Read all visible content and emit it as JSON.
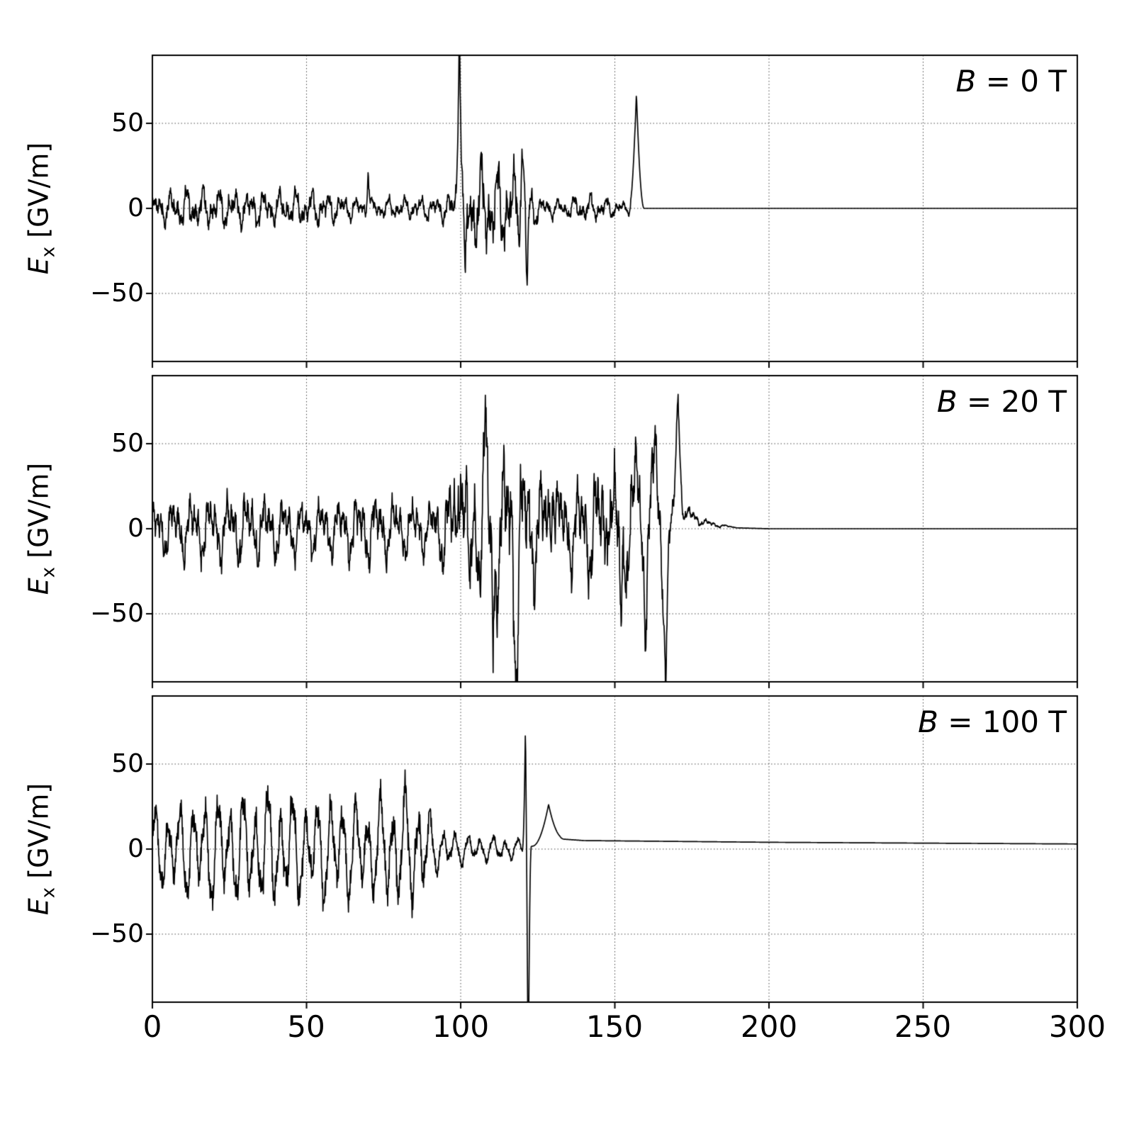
{
  "chart_data": {
    "type": "line",
    "title": "",
    "xlabel": "",
    "ylabel_parts": {
      "sym": "E",
      "sub": "x",
      "unit": " [GV/m]"
    },
    "xlim": [
      0,
      300
    ],
    "ylim": [
      -90,
      90
    ],
    "xticks": [
      0,
      50,
      100,
      150,
      200,
      250,
      300
    ],
    "xtick_labels": [
      "0",
      "50",
      "100",
      "150",
      "200",
      "250",
      "300"
    ],
    "yticks": [
      50,
      0,
      -50
    ],
    "ytick_labels": [
      "50",
      "0",
      "−50"
    ],
    "grid": "dotted",
    "grid_color": "#444444",
    "line_color": "#000000",
    "legend": "none",
    "panels": [
      {
        "label_var": "B",
        "label_rest": " = 0 T",
        "description": "Noisy wakefield ±20 GV/m up to x≈95, large clipped spike at x≈100, strong oscillations to x≈122, small noise to x≈155, solitary peak ≈68 at x≈157, flat 0 afterwards",
        "signal": {
          "osc": [
            [
              1.25,
              0.45,
              0.0
            ],
            [
              2.3,
              0.35,
              1.3
            ],
            [
              5.3,
              0.2,
              2.1
            ],
            [
              11.7,
              0.12,
              0.7
            ]
          ],
          "envelope": [
            [
              0,
              10
            ],
            [
              12,
              15
            ],
            [
              20,
              14
            ],
            [
              30,
              13
            ],
            [
              40,
              12
            ],
            [
              52,
              13
            ],
            [
              60,
              10
            ],
            [
              68,
              7
            ],
            [
              75,
              7
            ],
            [
              85,
              8
            ],
            [
              92,
              8
            ],
            [
              96,
              11
            ],
            [
              99,
              16
            ],
            [
              103,
              30
            ],
            [
              107,
              34
            ],
            [
              112,
              30
            ],
            [
              118,
              30
            ],
            [
              122,
              18
            ],
            [
              126,
              8
            ],
            [
              133,
              6
            ],
            [
              140,
              10
            ],
            [
              146,
              8
            ],
            [
              150,
              6
            ],
            [
              155,
              4
            ],
            [
              158,
              0
            ],
            [
              300,
              0
            ]
          ],
          "baseline": [
            [
              0,
              0
            ],
            [
              300,
              0
            ]
          ],
          "spikes": [
            {
              "x": 70,
              "y": 25,
              "w": 1.0
            },
            {
              "x": 99.6,
              "y": 120,
              "w": 1.5
            },
            {
              "x": 101.5,
              "y": -55,
              "w": 1.2
            },
            {
              "x": 120,
              "y": 38,
              "w": 1.5
            },
            {
              "x": 121.5,
              "y": -48,
              "w": 1.2
            },
            {
              "x": 157,
              "y": 68,
              "w": 2.5
            }
          ]
        }
      },
      {
        "label_var": "B",
        "label_rest": " = 20 T",
        "description": "Noisy wakefield ±25 GV/m up to x≈95, growing chaotic oscillations ±70 between x≈95–168, extreme dip ≈−85 at x≈166 and peak ≈80 at x≈170, decays to 0 by x≈190",
        "signal": {
          "osc": [
            [
              1.05,
              0.5,
              0.5
            ],
            [
              2.1,
              0.3,
              1.9
            ],
            [
              4.7,
              0.25,
              0.3
            ],
            [
              9.3,
              0.12,
              2.2
            ]
          ],
          "envelope": [
            [
              0,
              18
            ],
            [
              10,
              22
            ],
            [
              20,
              22
            ],
            [
              30,
              25
            ],
            [
              40,
              22
            ],
            [
              50,
              18
            ],
            [
              60,
              20
            ],
            [
              70,
              25
            ],
            [
              80,
              20
            ],
            [
              90,
              18
            ],
            [
              95,
              30
            ],
            [
              100,
              45
            ],
            [
              105,
              40
            ],
            [
              110,
              50
            ],
            [
              115,
              55
            ],
            [
              120,
              50
            ],
            [
              125,
              40
            ],
            [
              130,
              35
            ],
            [
              135,
              30
            ],
            [
              140,
              35
            ],
            [
              145,
              45
            ],
            [
              150,
              45
            ],
            [
              155,
              40
            ],
            [
              158,
              35
            ],
            [
              162,
              40
            ],
            [
              165,
              28
            ],
            [
              168,
              18
            ],
            [
              172,
              8
            ],
            [
              178,
              3
            ],
            [
              185,
              1
            ],
            [
              190,
              0
            ],
            [
              300,
              0
            ]
          ],
          "baseline": [
            [
              0,
              0
            ],
            [
              170,
              0
            ],
            [
              174,
              8
            ],
            [
              180,
              3
            ],
            [
              190,
              0.5
            ],
            [
              200,
              0
            ],
            [
              300,
              0
            ]
          ],
          "spikes": [
            {
              "x": 100,
              "y": 72,
              "w": 1.5
            },
            {
              "x": 103,
              "y": -45,
              "w": 1.5
            },
            {
              "x": 108,
              "y": 57,
              "w": 1.5
            },
            {
              "x": 110.5,
              "y": -70,
              "w": 1.5
            },
            {
              "x": 118,
              "y": -70,
              "w": 1.8
            },
            {
              "x": 130,
              "y": 42,
              "w": 2.0
            },
            {
              "x": 148,
              "y": 42,
              "w": 1.5
            },
            {
              "x": 152,
              "y": -62,
              "w": 1.5
            },
            {
              "x": 157,
              "y": 45,
              "w": 1.5
            },
            {
              "x": 160,
              "y": -40,
              "w": 1.5
            },
            {
              "x": 163,
              "y": 57,
              "w": 1.8
            },
            {
              "x": 166.5,
              "y": -85,
              "w": 2.0
            },
            {
              "x": 170.5,
              "y": 80,
              "w": 2.5
            }
          ]
        }
      },
      {
        "label_var": "B",
        "label_rest": " = 100 T",
        "description": "Regular quasi-periodic oscillation ±35 GV/m up to x≈90, weaker noise to x≈119, sharp peak ≈72 then clipped negative spike below −90 at x≈121, bump ≈25 at x≈128, settles to ≈+4 plateau out to 300",
        "signal": {
          "osc": [
            [
              1.55,
              0.65,
              0.0
            ],
            [
              0.85,
              0.25,
              1.2
            ],
            [
              3.9,
              0.15,
              2.5
            ]
          ],
          "envelope": [
            [
              0,
              25
            ],
            [
              10,
              30
            ],
            [
              20,
              35
            ],
            [
              30,
              35
            ],
            [
              40,
              38
            ],
            [
              50,
              32
            ],
            [
              60,
              35
            ],
            [
              70,
              30
            ],
            [
              80,
              40
            ],
            [
              88,
              35
            ],
            [
              92,
              15
            ],
            [
              100,
              10
            ],
            [
              108,
              8
            ],
            [
              115,
              8
            ],
            [
              119,
              6
            ],
            [
              121,
              0
            ],
            [
              300,
              0
            ]
          ],
          "baseline": [
            [
              0,
              0
            ],
            [
              119,
              0
            ],
            [
              124,
              2
            ],
            [
              132,
              6
            ],
            [
              140,
              5
            ],
            [
              200,
              4
            ],
            [
              300,
              3
            ]
          ],
          "spikes": [
            {
              "x": 121,
              "y": 72,
              "w": 1.0
            },
            {
              "x": 121.9,
              "y": -145,
              "w": 1.0
            },
            {
              "x": 128.5,
              "y": 22,
              "w": 5.0
            }
          ]
        }
      }
    ]
  }
}
